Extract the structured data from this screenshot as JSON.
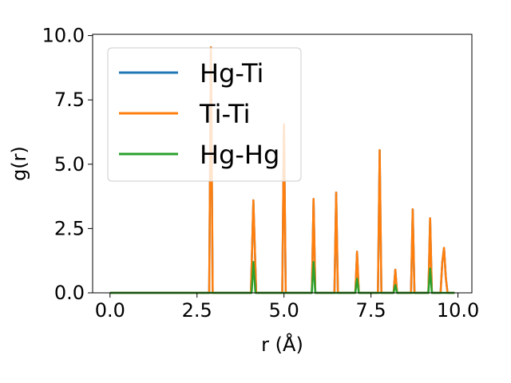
{
  "chart_data": {
    "type": "line",
    "title": "",
    "xlabel": "r (Å)",
    "ylabel": "g(r)",
    "xlim": [
      -0.5,
      10.4
    ],
    "ylim": [
      0,
      10.05
    ],
    "xticks": [
      0.0,
      2.5,
      5.0,
      7.5,
      10.0
    ],
    "xtick_labels": [
      "0.0",
      "2.5",
      "5.0",
      "7.5",
      "10.0"
    ],
    "yticks": [
      0.0,
      2.5,
      5.0,
      7.5,
      10.0
    ],
    "ytick_labels": [
      "0.0",
      "2.5",
      "5.0",
      "7.5",
      "10.0"
    ],
    "grid": false,
    "legend_position": "upper-left",
    "series": [
      {
        "name": "Hg-Ti",
        "color": "#1f77b4",
        "x": [
          0.0,
          2.75,
          2.85,
          2.9,
          2.95,
          3.05,
          4.0,
          4.05,
          4.12,
          4.2,
          4.25,
          4.9,
          4.95,
          5.0,
          5.05,
          5.1,
          5.75,
          5.8,
          5.85,
          5.9,
          5.95,
          6.4,
          6.45,
          6.5,
          6.55,
          6.6,
          7.0,
          7.05,
          7.1,
          7.15,
          7.2,
          7.65,
          7.7,
          7.75,
          7.8,
          7.85,
          8.1,
          8.15,
          8.2,
          8.25,
          8.3,
          8.6,
          8.65,
          8.7,
          8.75,
          8.8,
          9.1,
          9.15,
          9.2,
          9.25,
          9.3,
          9.5,
          9.55,
          9.6,
          9.65,
          9.7,
          9.9
        ],
        "y": [
          0,
          0,
          0,
          9.55,
          0,
          0,
          0,
          0,
          3.6,
          0,
          0,
          0,
          0,
          6.55,
          0,
          0,
          0,
          0,
          3.65,
          0,
          0,
          0,
          0,
          3.9,
          0,
          0,
          0,
          0,
          1.6,
          0,
          0,
          0,
          0,
          5.55,
          0,
          0,
          0,
          0,
          0.9,
          0,
          0,
          0,
          0,
          3.25,
          0,
          0,
          0,
          0,
          2.9,
          0,
          0,
          0,
          1.2,
          1.75,
          0.6,
          0,
          0
        ]
      },
      {
        "name": "Ti-Ti",
        "color": "#ff7f0e",
        "x": [
          0.0,
          2.75,
          2.85,
          2.9,
          2.95,
          3.05,
          4.0,
          4.05,
          4.12,
          4.2,
          4.25,
          4.9,
          4.95,
          5.0,
          5.05,
          5.1,
          5.75,
          5.8,
          5.85,
          5.9,
          5.95,
          6.4,
          6.45,
          6.5,
          6.55,
          6.6,
          7.0,
          7.05,
          7.1,
          7.15,
          7.2,
          7.65,
          7.7,
          7.75,
          7.8,
          7.85,
          8.1,
          8.15,
          8.2,
          8.25,
          8.3,
          8.6,
          8.65,
          8.7,
          8.75,
          8.8,
          9.1,
          9.15,
          9.2,
          9.25,
          9.3,
          9.5,
          9.55,
          9.6,
          9.65,
          9.7,
          9.9
        ],
        "y": [
          0,
          0,
          0,
          9.55,
          0,
          0,
          0,
          0,
          3.6,
          0,
          0,
          0,
          0,
          6.55,
          0,
          0,
          0,
          0,
          3.65,
          0,
          0,
          0,
          0,
          3.9,
          0,
          0,
          0,
          0,
          1.6,
          0,
          0,
          0,
          0,
          5.55,
          0,
          0,
          0,
          0,
          0.9,
          0,
          0,
          0,
          0,
          3.25,
          0,
          0,
          0,
          0,
          2.9,
          0,
          0,
          0,
          1.2,
          1.75,
          0.6,
          0,
          0
        ]
      },
      {
        "name": "Hg-Hg",
        "color": "#2ca02c",
        "x": [
          0.0,
          4.0,
          4.07,
          4.12,
          4.18,
          4.25,
          5.75,
          5.8,
          5.85,
          5.9,
          5.95,
          7.0,
          7.05,
          7.1,
          7.15,
          7.2,
          8.1,
          8.15,
          8.2,
          8.25,
          8.3,
          9.1,
          9.15,
          9.2,
          9.25,
          9.3,
          9.9
        ],
        "y": [
          0,
          0,
          0,
          1.2,
          0,
          0,
          0,
          0,
          1.2,
          0,
          0,
          0,
          0,
          0.55,
          0,
          0,
          0,
          0,
          0.3,
          0,
          0,
          0,
          0,
          0.95,
          0,
          0,
          0
        ]
      }
    ]
  }
}
